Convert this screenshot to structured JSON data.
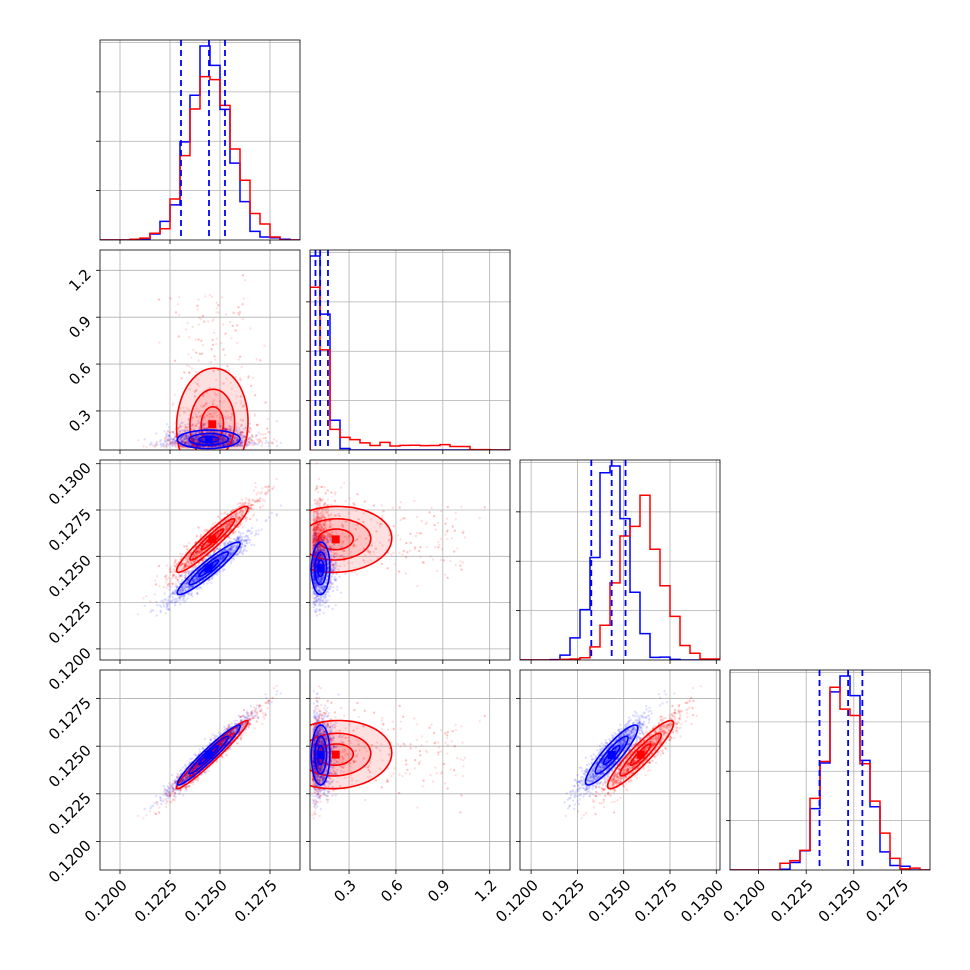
{
  "colors": {
    "series_a": "#0000ff",
    "series_b": "#ff0000",
    "grid": "#b0b0b0",
    "frame": "#000000"
  },
  "chart_data": {
    "type": "corner",
    "grid": true,
    "series": [
      {
        "name": "",
        "color": "#0000ff",
        "mean": [
          0.12445,
          0.138,
          0.12435,
          0.12455
        ],
        "sd": [
          0.00095,
          0.04,
          0.00085,
          0.00095
        ],
        "corr_1_0": -0.1,
        "corr_2_0": 0.93,
        "corr_3_0": 0.96,
        "corr_3_2": 0.93
      },
      {
        "name": "",
        "color": "#ff0000",
        "mean": [
          0.12455,
          0.18,
          0.12585,
          0.1245
        ],
        "sd": [
          0.0011,
          0.16,
          0.0011,
          0.0011
        ],
        "corr_1_0": -0.2,
        "corr_2_0": 0.95,
        "corr_3_0": 0.97,
        "corr_3_2": 0.96
      }
    ],
    "quantile_lines": [
      [
        0.12305,
        0.12445,
        0.12525
      ],
      [
        0.085,
        0.115,
        0.165
      ],
      [
        0.12325,
        0.12435,
        0.1251
      ],
      [
        0.1232,
        0.1247,
        0.12545
      ]
    ],
    "axes": [
      {
        "range": [
          0.119,
          0.129
        ],
        "ticks": [
          0.12,
          0.1225,
          0.125,
          0.1275
        ],
        "tick_labels": [
          "0.1200",
          "0.1225",
          "0.1250",
          "0.1275"
        ]
      },
      {
        "range": [
          0.05,
          1.33
        ],
        "ticks": [
          0.3,
          0.6,
          0.9,
          1.2
        ],
        "tick_labels": [
          "0.3",
          "0.6",
          "0.9",
          "1.2"
        ]
      },
      {
        "range": [
          0.1194,
          0.1302
        ],
        "ticks": [
          0.12,
          0.1225,
          0.125,
          0.1275,
          0.13
        ],
        "tick_labels": [
          "0.1200",
          "0.1225",
          "0.1250",
          "0.1275",
          "0.1300"
        ]
      },
      {
        "range": [
          0.1185,
          0.129
        ],
        "ticks": [
          0.12,
          0.1225,
          0.125,
          0.1275
        ],
        "tick_labels": [
          "0.1200",
          "0.1225",
          "0.1250",
          "0.1275"
        ]
      }
    ]
  }
}
